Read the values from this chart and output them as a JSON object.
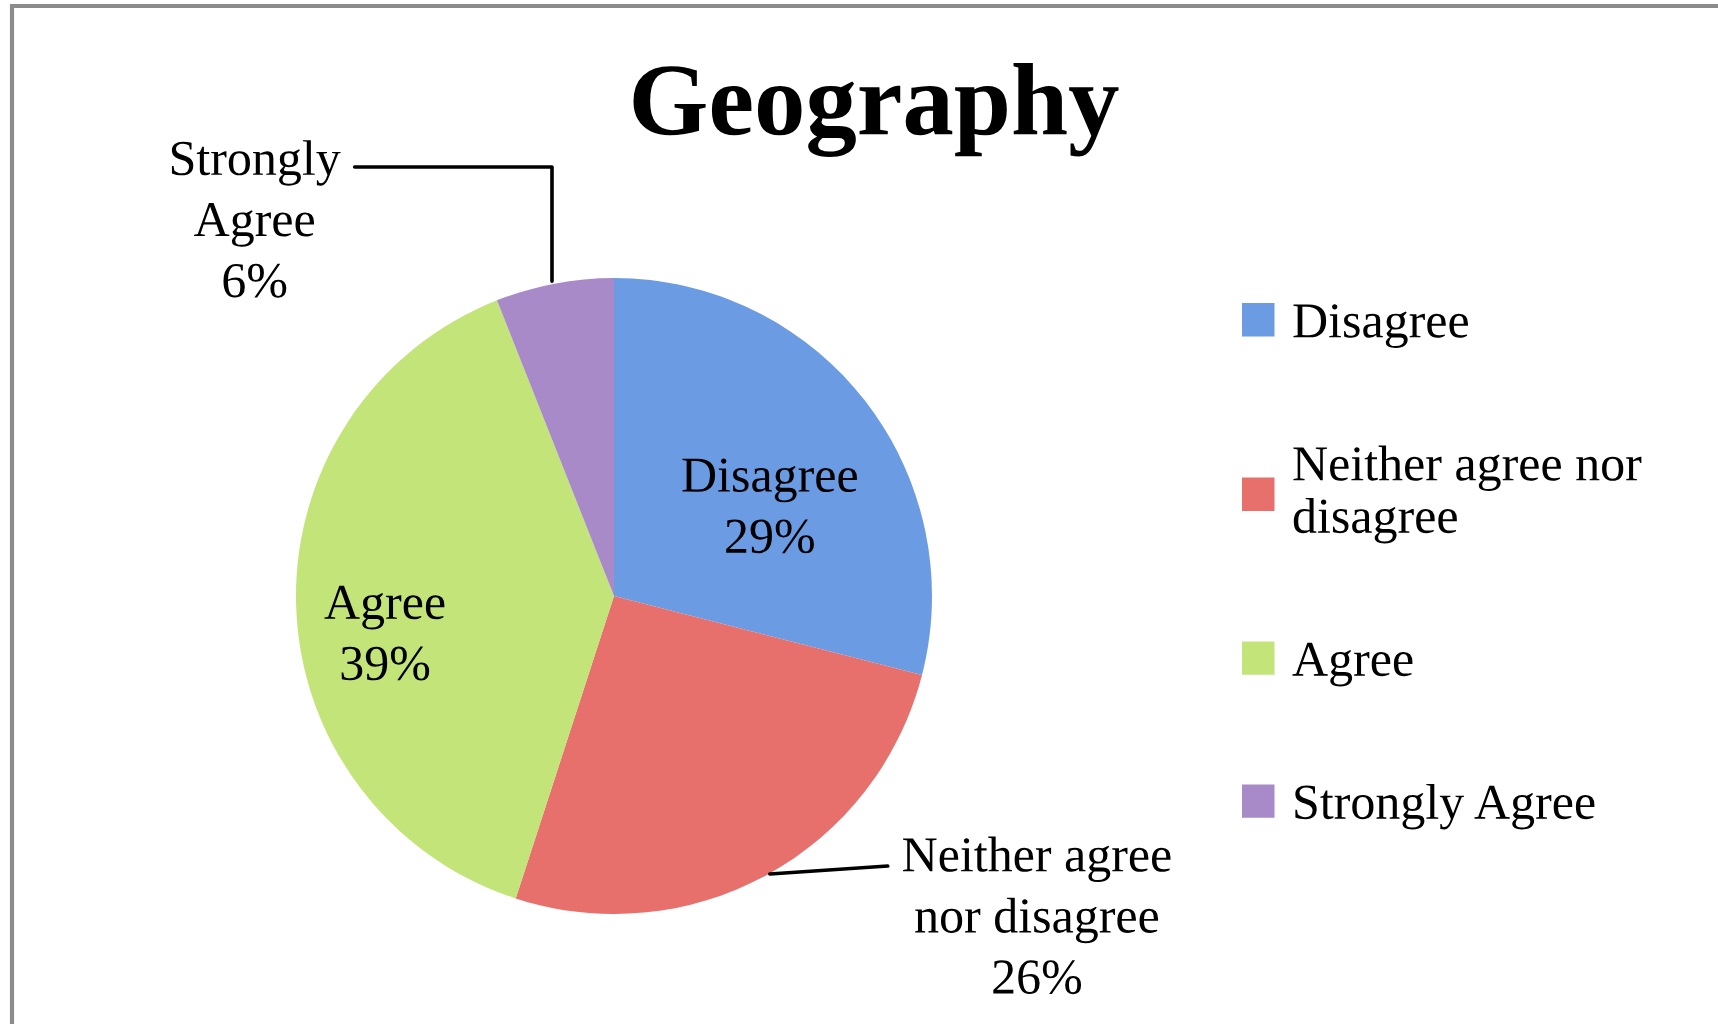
{
  "chart_data": {
    "type": "pie",
    "title": "Geography",
    "categories": [
      "Disagree",
      "Neither agree nor disagree",
      "Agree",
      "Strongly Agree"
    ],
    "values": [
      29,
      26,
      39,
      6
    ],
    "colors": [
      "#6a9be3",
      "#e8706c",
      "#c3e478",
      "#a98ac9"
    ],
    "value_labels": [
      "29%",
      "26%",
      "39%",
      "6%"
    ],
    "legend": "right"
  }
}
